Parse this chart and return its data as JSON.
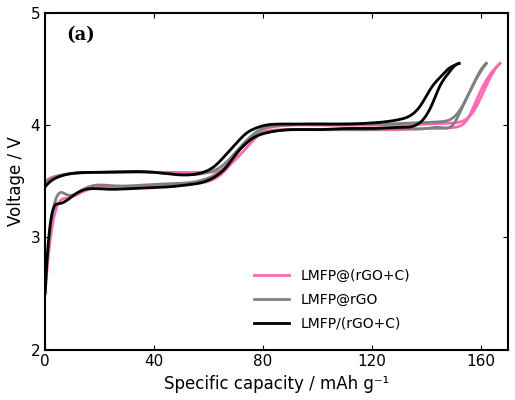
{
  "title": "(a)",
  "xlabel": "Specific capacity / mAh g⁻¹",
  "ylabel": "Voltage / V",
  "xlim": [
    0,
    170
  ],
  "ylim": [
    2,
    5
  ],
  "xticks": [
    0,
    40,
    80,
    120,
    160
  ],
  "yticks": [
    2,
    3,
    4,
    5
  ],
  "legend": [
    "LMFP@(rGO+C)",
    "LMFP@rGO",
    "LMFP/(rGO+C)"
  ],
  "colors": [
    "#ff69b4",
    "#808080",
    "#000000"
  ],
  "linewidth": 2.0,
  "pink_charge_x": [
    0,
    2,
    5,
    10,
    20,
    40,
    60,
    65,
    68,
    71,
    74,
    77,
    80,
    85,
    90,
    100,
    110,
    120,
    130,
    140,
    150,
    155,
    158,
    161,
    164,
    167
  ],
  "pink_charge_y": [
    3.5,
    3.53,
    3.55,
    3.57,
    3.58,
    3.58,
    3.58,
    3.6,
    3.65,
    3.72,
    3.8,
    3.88,
    3.95,
    3.99,
    4.0,
    4.0,
    4.0,
    4.0,
    4.0,
    4.01,
    4.02,
    4.06,
    4.15,
    4.3,
    4.45,
    4.55
  ],
  "pink_discharge_x": [
    167,
    165,
    162,
    158,
    155,
    150,
    145,
    140,
    130,
    120,
    110,
    100,
    90,
    82,
    78,
    75,
    72,
    70,
    67,
    64,
    60,
    55,
    48,
    38,
    25,
    15,
    8,
    2,
    0
  ],
  "pink_discharge_y": [
    4.55,
    4.5,
    4.4,
    4.2,
    4.05,
    3.98,
    3.97,
    3.97,
    3.96,
    3.96,
    3.96,
    3.96,
    3.96,
    3.95,
    3.92,
    3.87,
    3.8,
    3.72,
    3.62,
    3.55,
    3.5,
    3.48,
    3.47,
    3.46,
    3.45,
    3.42,
    3.35,
    3.0,
    2.5
  ],
  "gray_charge_x": [
    0,
    2,
    5,
    10,
    20,
    40,
    60,
    64,
    67,
    70,
    73,
    76,
    79,
    83,
    88,
    95,
    105,
    115,
    125,
    135,
    145,
    150,
    153,
    156,
    159,
    162
  ],
  "gray_charge_y": [
    3.48,
    3.52,
    3.55,
    3.57,
    3.58,
    3.58,
    3.58,
    3.62,
    3.68,
    3.76,
    3.84,
    3.91,
    3.96,
    3.99,
    4.0,
    4.01,
    4.01,
    4.01,
    4.01,
    4.02,
    4.03,
    4.07,
    4.16,
    4.3,
    4.45,
    4.55
  ],
  "gray_discharge_x": [
    162,
    160,
    157,
    153,
    150,
    145,
    140,
    130,
    120,
    110,
    100,
    90,
    82,
    77,
    74,
    71,
    68,
    65,
    61,
    56,
    48,
    38,
    25,
    15,
    8,
    2,
    0
  ],
  "gray_discharge_y": [
    4.55,
    4.48,
    4.35,
    4.15,
    4.01,
    3.98,
    3.97,
    3.97,
    3.96,
    3.96,
    3.96,
    3.96,
    3.94,
    3.9,
    3.84,
    3.77,
    3.68,
    3.6,
    3.54,
    3.5,
    3.48,
    3.47,
    3.46,
    3.44,
    3.38,
    3.1,
    2.55
  ],
  "black_charge_x": [
    0,
    2,
    5,
    10,
    20,
    40,
    58,
    62,
    65,
    68,
    71,
    74,
    77,
    81,
    86,
    92,
    100,
    110,
    120,
    130,
    135,
    138,
    140,
    142,
    144,
    146,
    148,
    150,
    152
  ],
  "black_charge_y": [
    3.45,
    3.5,
    3.54,
    3.57,
    3.58,
    3.58,
    3.58,
    3.63,
    3.7,
    3.78,
    3.86,
    3.93,
    3.97,
    4.0,
    4.01,
    4.01,
    4.01,
    4.01,
    4.02,
    4.05,
    4.1,
    4.18,
    4.26,
    4.34,
    4.4,
    4.45,
    4.5,
    4.53,
    4.55
  ],
  "black_discharge_x": [
    152,
    150,
    148,
    145,
    142,
    138,
    135,
    130,
    120,
    110,
    100,
    90,
    81,
    76,
    73,
    70,
    67,
    63,
    59,
    53,
    45,
    35,
    22,
    12,
    5,
    1,
    0
  ],
  "black_discharge_y": [
    4.55,
    4.52,
    4.46,
    4.35,
    4.18,
    4.03,
    3.99,
    3.98,
    3.97,
    3.97,
    3.96,
    3.96,
    3.93,
    3.88,
    3.82,
    3.74,
    3.64,
    3.55,
    3.5,
    3.47,
    3.45,
    3.44,
    3.43,
    3.4,
    3.3,
    2.9,
    2.5
  ]
}
